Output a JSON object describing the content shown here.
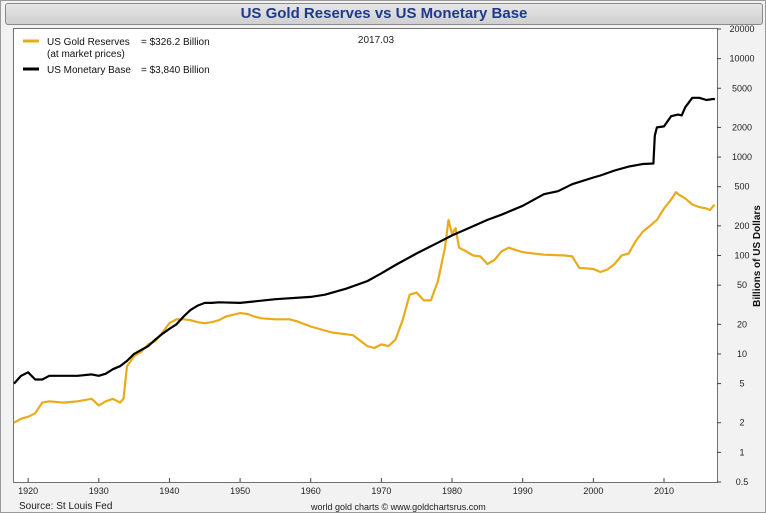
{
  "header": {
    "title": "US Gold Reserves vs US Monetary Base"
  },
  "footer": {
    "source": "Source: St Louis Fed",
    "credit": "world gold charts © www.goldchartsrus.com"
  },
  "chart_data": {
    "type": "line",
    "title": "US Gold Reserves vs US Monetary Base",
    "date_label": "2017.03",
    "xlabel": "",
    "ylabel": "Billions of US Dollars",
    "y_scale": "log",
    "xlim": [
      1918,
      2017.5
    ],
    "ylim": [
      0.5,
      20000
    ],
    "x_ticks": [
      1920,
      1930,
      1940,
      1950,
      1960,
      1970,
      1980,
      1990,
      2000,
      2010
    ],
    "y_ticks": [
      0.5,
      1,
      2,
      5,
      10,
      20,
      50,
      100,
      200,
      500,
      1000,
      2000,
      5000,
      10000,
      20000
    ],
    "grid": false,
    "legend_position": "top-left",
    "legend": [
      {
        "line1": "US Gold Reserves",
        "value": "= $326.2 Billion",
        "line2": "(at market prices)"
      },
      {
        "line1": "US Monetary Base",
        "value": "= $3,840 Billion",
        "line2": ""
      }
    ],
    "series": [
      {
        "name": "US Gold Reserves",
        "color": "#e8ab1a",
        "x": [
          1918,
          1919,
          1920,
          1921,
          1922,
          1923,
          1925,
          1927,
          1929,
          1930,
          1931,
          1932,
          1933,
          1933.5,
          1934,
          1935,
          1936,
          1937,
          1938,
          1939,
          1940,
          1941,
          1942,
          1943,
          1944,
          1945,
          1946,
          1947,
          1948,
          1949,
          1950,
          1951,
          1952,
          1953,
          1955,
          1957,
          1958,
          1960,
          1963,
          1966,
          1968,
          1969,
          1970,
          1971,
          1972,
          1973,
          1974,
          1975,
          1976,
          1977,
          1978,
          1979,
          1979.5,
          1980,
          1980.5,
          1981,
          1982,
          1983,
          1984,
          1985,
          1986,
          1987,
          1988,
          1990,
          1993,
          1996,
          1997,
          1998,
          2000,
          2001,
          2002,
          2003,
          2004,
          2005,
          2006,
          2007,
          2008,
          2009,
          2010,
          2011,
          2011.7,
          2012,
          2013,
          2014,
          2015,
          2016,
          2016.5,
          2017,
          2017.2
        ],
        "values": [
          2.0,
          2.2,
          2.3,
          2.5,
          3.2,
          3.3,
          3.2,
          3.3,
          3.5,
          3.0,
          3.3,
          3.5,
          3.2,
          3.5,
          7.5,
          9.5,
          10.5,
          12.5,
          13.5,
          16.5,
          20.5,
          22.5,
          22.5,
          22.0,
          21.0,
          20.5,
          21.0,
          22.0,
          24.0,
          25.0,
          26.0,
          25.5,
          24.0,
          23.0,
          22.5,
          22.5,
          21.5,
          19.0,
          16.5,
          15.5,
          12.0,
          11.5,
          12.5,
          12.0,
          14.0,
          22.0,
          40.0,
          42.0,
          35.0,
          35.0,
          55.0,
          120.0,
          230.0,
          165.0,
          190.0,
          120.0,
          110.0,
          100.0,
          98.0,
          82.0,
          90.0,
          110.0,
          120.0,
          108.0,
          102.0,
          100.0,
          98.0,
          75.0,
          73.0,
          68.0,
          72.0,
          82.0,
          100.0,
          105.0,
          140.0,
          175.0,
          200.0,
          230.0,
          300.0,
          370.0,
          440.0,
          420.0,
          380.0,
          330.0,
          310.0,
          300.0,
          290.0,
          320.0,
          326.0
        ]
      },
      {
        "name": "US Monetary Base",
        "color": "#000000",
        "x": [
          1918,
          1919,
          1920,
          1921,
          1922,
          1923,
          1925,
          1927,
          1929,
          1930,
          1931,
          1932,
          1933,
          1934,
          1935,
          1936,
          1937,
          1938,
          1939,
          1940,
          1941,
          1942,
          1943,
          1944,
          1945,
          1946,
          1947,
          1950,
          1955,
          1960,
          1962,
          1965,
          1968,
          1970,
          1972,
          1975,
          1978,
          1980,
          1982,
          1985,
          1987,
          1990,
          1993,
          1995,
          1997,
          2000,
          2001,
          2003,
          2005,
          2007,
          2008.5,
          2008.7,
          2009,
          2010,
          2011,
          2012,
          2012.5,
          2013,
          2014,
          2015,
          2016,
          2017,
          2017.2
        ],
        "values": [
          5.0,
          6.0,
          6.5,
          5.5,
          5.5,
          6.0,
          6.0,
          6.0,
          6.2,
          6.0,
          6.3,
          7.0,
          7.5,
          8.5,
          10.0,
          11.0,
          12.0,
          14.0,
          16.0,
          18.0,
          20.0,
          24.0,
          28.0,
          31.0,
          33.0,
          33.0,
          33.5,
          33.0,
          36.0,
          38.0,
          40.0,
          46.0,
          55.0,
          66.0,
          80.0,
          105.0,
          135.0,
          160.0,
          185.0,
          230.0,
          260.0,
          320.0,
          420.0,
          450.0,
          530.0,
          620.0,
          650.0,
          730.0,
          800.0,
          850.0,
          860.0,
          1650.0,
          2000.0,
          2050.0,
          2600.0,
          2700.0,
          2650.0,
          3200.0,
          4000.0,
          4000.0,
          3800.0,
          3900.0,
          3840.0
        ]
      }
    ]
  }
}
